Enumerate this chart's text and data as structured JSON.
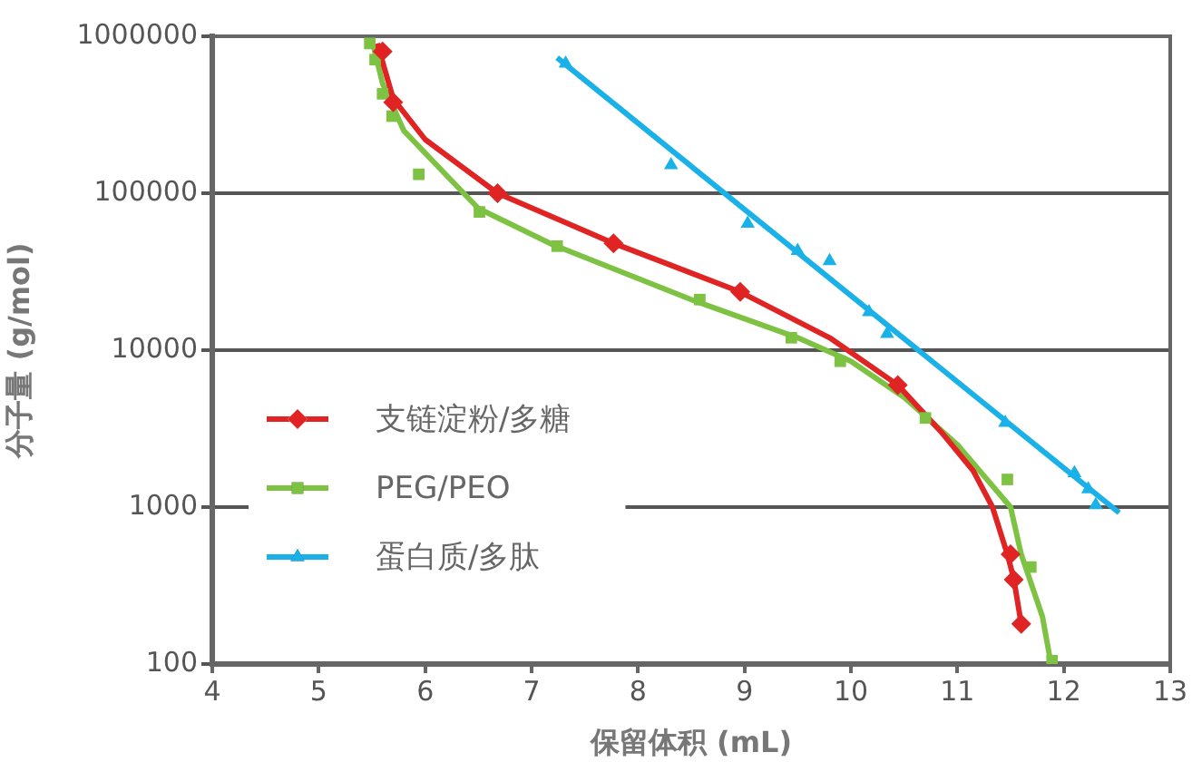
{
  "chart_data": {
    "type": "scatter",
    "xlabel": "保留体积 (mL)",
    "ylabel": "分子量 (g/mol)",
    "xlim": [
      4,
      13
    ],
    "xticks": [
      4,
      5,
      6,
      7,
      8,
      9,
      10,
      11,
      12,
      13
    ],
    "ylim": [
      100,
      1000000
    ],
    "yticks": [
      100,
      1000,
      10000,
      100000,
      1000000
    ],
    "log": "y",
    "grid": "y",
    "legend": "bottom left",
    "series": [
      {
        "name": "支链淀粉/多糖",
        "color": "#e02424",
        "marker": "diamond",
        "x": [
          5.6,
          5.7,
          6.68,
          7.77,
          8.96,
          10.44,
          11.5,
          11.53,
          11.6
        ],
        "values": [
          800000,
          380000,
          100000,
          48000,
          23500,
          6000,
          500,
          345,
          180
        ]
      },
      {
        "name": "PEG/PEO",
        "color": "#7dc242",
        "marker": "square",
        "x": [
          5.48,
          5.53,
          5.6,
          5.69,
          5.94,
          6.51,
          7.24,
          8.58,
          9.44,
          9.9,
          10.7,
          11.47,
          11.69,
          11.89
        ],
        "values": [
          900000,
          710000,
          430000,
          310000,
          132000,
          76000,
          46000,
          21000,
          12000,
          8500,
          3700,
          1500,
          415,
          105
        ]
      },
      {
        "name": "蛋白质/多肽",
        "color": "#1ab0e8",
        "marker": "triangle",
        "x": [
          7.32,
          8.31,
          9.03,
          9.5,
          9.8,
          10.17,
          10.34,
          11.45,
          12.1,
          12.23,
          12.3
        ],
        "values": [
          670000,
          151000,
          64000,
          43000,
          37000,
          17500,
          12700,
          3450,
          1650,
          1300,
          1030
        ]
      },
      {
        "type": "line",
        "color": "#e02424",
        "marker": "none",
        "x": [
          5.55,
          5.7,
          6.0,
          6.68,
          7.77,
          8.96,
          9.8,
          10.44,
          10.85,
          11.15,
          11.33,
          11.47,
          11.53,
          11.6
        ],
        "values": [
          900000,
          400000,
          220000,
          100000,
          48000,
          23500,
          12000,
          6000,
          3000,
          1700,
          1000,
          500,
          350,
          180
        ]
      },
      {
        "type": "line",
        "color": "#7dc242",
        "marker": "none",
        "x": [
          5.5,
          5.6,
          5.8,
          6.2,
          6.5,
          7.2,
          8.5,
          9.5,
          10.0,
          10.5,
          11.0,
          11.5,
          11.6,
          11.8,
          11.88
        ],
        "values": [
          950000,
          500000,
          250000,
          130000,
          80000,
          47000,
          21000,
          12000,
          8500,
          5000,
          2500,
          1000,
          500,
          200,
          100
        ]
      },
      {
        "type": "line",
        "color": "#1ab0e8",
        "marker": "none",
        "x": [
          7.24,
          12.52
        ],
        "values": [
          730000,
          920
        ]
      }
    ]
  }
}
